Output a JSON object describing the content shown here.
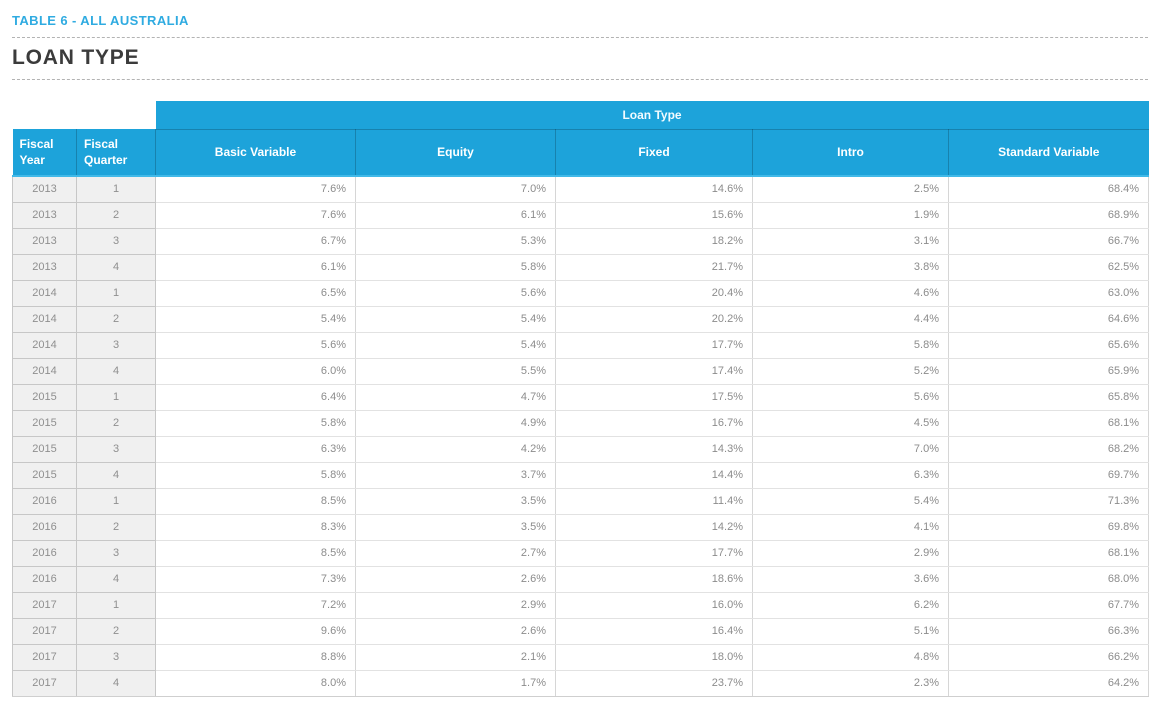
{
  "page": {
    "kicker": "TABLE 6 - ALL AUSTRALIA",
    "title": "LOAN TYPE"
  },
  "colors": {
    "accent_blue": "#2fabe1",
    "header_blue": "#1da3da",
    "header_underline": "#41b9e8",
    "title_dark": "#3b3b3b",
    "data_text": "#8c8c8c",
    "label_cell_bg": "#f0f0f0"
  },
  "table": {
    "group_header": "Loan Type",
    "columns": [
      "Fiscal Year",
      "Fiscal Quarter",
      "Basic Variable",
      "Equity",
      "Fixed",
      "Intro",
      "Standard Variable"
    ],
    "rows": [
      [
        "2013",
        "1",
        "7.6%",
        "7.0%",
        "14.6%",
        "2.5%",
        "68.4%"
      ],
      [
        "2013",
        "2",
        "7.6%",
        "6.1%",
        "15.6%",
        "1.9%",
        "68.9%"
      ],
      [
        "2013",
        "3",
        "6.7%",
        "5.3%",
        "18.2%",
        "3.1%",
        "66.7%"
      ],
      [
        "2013",
        "4",
        "6.1%",
        "5.8%",
        "21.7%",
        "3.8%",
        "62.5%"
      ],
      [
        "2014",
        "1",
        "6.5%",
        "5.6%",
        "20.4%",
        "4.6%",
        "63.0%"
      ],
      [
        "2014",
        "2",
        "5.4%",
        "5.4%",
        "20.2%",
        "4.4%",
        "64.6%"
      ],
      [
        "2014",
        "3",
        "5.6%",
        "5.4%",
        "17.7%",
        "5.8%",
        "65.6%"
      ],
      [
        "2014",
        "4",
        "6.0%",
        "5.5%",
        "17.4%",
        "5.2%",
        "65.9%"
      ],
      [
        "2015",
        "1",
        "6.4%",
        "4.7%",
        "17.5%",
        "5.6%",
        "65.8%"
      ],
      [
        "2015",
        "2",
        "5.8%",
        "4.9%",
        "16.7%",
        "4.5%",
        "68.1%"
      ],
      [
        "2015",
        "3",
        "6.3%",
        "4.2%",
        "14.3%",
        "7.0%",
        "68.2%"
      ],
      [
        "2015",
        "4",
        "5.8%",
        "3.7%",
        "14.4%",
        "6.3%",
        "69.7%"
      ],
      [
        "2016",
        "1",
        "8.5%",
        "3.5%",
        "11.4%",
        "5.4%",
        "71.3%"
      ],
      [
        "2016",
        "2",
        "8.3%",
        "3.5%",
        "14.2%",
        "4.1%",
        "69.8%"
      ],
      [
        "2016",
        "3",
        "8.5%",
        "2.7%",
        "17.7%",
        "2.9%",
        "68.1%"
      ],
      [
        "2016",
        "4",
        "7.3%",
        "2.6%",
        "18.6%",
        "3.6%",
        "68.0%"
      ],
      [
        "2017",
        "1",
        "7.2%",
        "2.9%",
        "16.0%",
        "6.2%",
        "67.7%"
      ],
      [
        "2017",
        "2",
        "9.6%",
        "2.6%",
        "16.4%",
        "5.1%",
        "66.3%"
      ],
      [
        "2017",
        "3",
        "8.8%",
        "2.1%",
        "18.0%",
        "4.8%",
        "66.2%"
      ],
      [
        "2017",
        "4",
        "8.0%",
        "1.7%",
        "23.7%",
        "2.3%",
        "64.2%"
      ]
    ]
  },
  "chart_data": {
    "type": "table",
    "title": "Loan Type share by fiscal quarter, All Australia (%)",
    "x": [
      "2013-Q1",
      "2013-Q2",
      "2013-Q3",
      "2013-Q4",
      "2014-Q1",
      "2014-Q2",
      "2014-Q3",
      "2014-Q4",
      "2015-Q1",
      "2015-Q2",
      "2015-Q3",
      "2015-Q4",
      "2016-Q1",
      "2016-Q2",
      "2016-Q3",
      "2016-Q4",
      "2017-Q1",
      "2017-Q2",
      "2017-Q3",
      "2017-Q4"
    ],
    "series": [
      {
        "name": "Basic Variable",
        "values": [
          7.6,
          7.6,
          6.7,
          6.1,
          6.5,
          5.4,
          5.6,
          6.0,
          6.4,
          5.8,
          6.3,
          5.8,
          8.5,
          8.3,
          8.5,
          7.3,
          7.2,
          9.6,
          8.8,
          8.0
        ]
      },
      {
        "name": "Equity",
        "values": [
          7.0,
          6.1,
          5.3,
          5.8,
          5.6,
          5.4,
          5.4,
          5.5,
          4.7,
          4.9,
          4.2,
          3.7,
          3.5,
          3.5,
          2.7,
          2.6,
          2.9,
          2.6,
          2.1,
          1.7
        ]
      },
      {
        "name": "Fixed",
        "values": [
          14.6,
          15.6,
          18.2,
          21.7,
          20.4,
          20.2,
          17.7,
          17.4,
          17.5,
          16.7,
          14.3,
          14.4,
          11.4,
          14.2,
          17.7,
          18.6,
          16.0,
          16.4,
          18.0,
          23.7
        ]
      },
      {
        "name": "Intro",
        "values": [
          2.5,
          1.9,
          3.1,
          3.8,
          4.6,
          4.4,
          5.8,
          5.2,
          5.6,
          4.5,
          7.0,
          6.3,
          5.4,
          4.1,
          2.9,
          3.6,
          6.2,
          5.1,
          4.8,
          2.3
        ]
      },
      {
        "name": "Standard Variable",
        "values": [
          68.4,
          68.9,
          66.7,
          62.5,
          63.0,
          64.6,
          65.6,
          65.9,
          65.8,
          68.1,
          68.2,
          69.7,
          71.3,
          69.8,
          68.1,
          68.0,
          67.7,
          66.3,
          66.2,
          64.2
        ]
      }
    ],
    "unit": "%"
  }
}
